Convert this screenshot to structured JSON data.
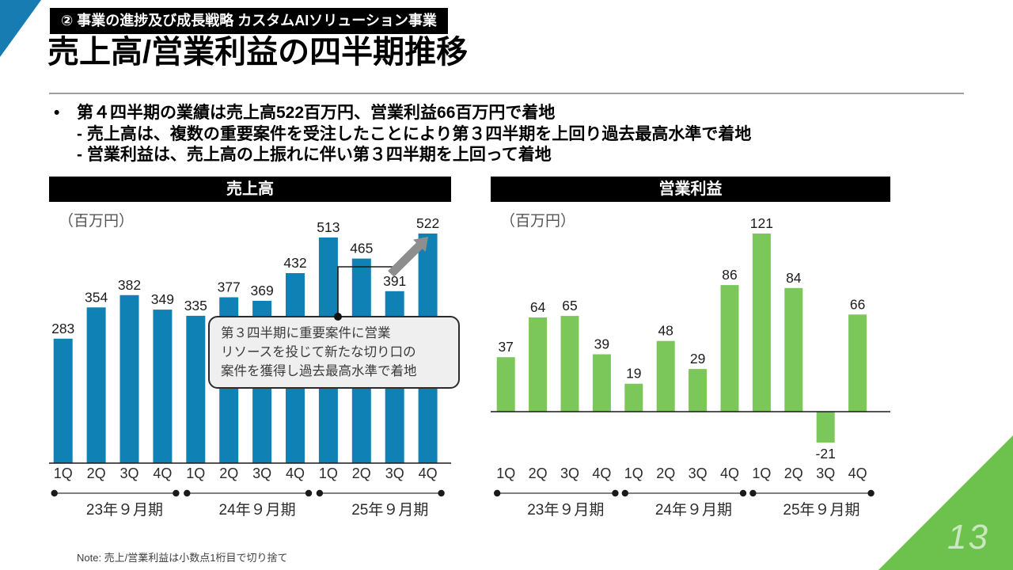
{
  "slide": {
    "badge": "② 事業の進捗及び成長戦略 カスタムAIソリューション事業",
    "title": "売上高/営業利益の四半期推移",
    "bullet_marker": "•",
    "bullets": {
      "line1": "第４四半期の業績は売上高522百万円、営業利益66百万円で着地",
      "line2": "- 売上高は、複数の重要案件を受注したことにより第３四半期を上回り過去最高水準で着地",
      "line3": "- 営業利益は、売上高の上振れに伴い第３四半期を上回って着地"
    },
    "note": "Note: 売上/営業利益は小数点1桁目で切り捨て",
    "page_number": "13"
  },
  "colors": {
    "sales_bar": "#1081B4",
    "profit_bar": "#7CC75A",
    "corner_blue": "#177CB1",
    "corner_green": "#6DC24E",
    "page_number_text": "#CBE7BD",
    "arrow_gray": "#8E8E8E",
    "callout_bg": "#EFEFEF"
  },
  "chart_data": [
    {
      "type": "bar",
      "title": "売上高",
      "unit_label": "（百万円）",
      "categories": [
        "1Q",
        "2Q",
        "3Q",
        "4Q",
        "1Q",
        "2Q",
        "3Q",
        "4Q",
        "1Q",
        "2Q",
        "3Q",
        "4Q"
      ],
      "values": [
        283,
        354,
        382,
        349,
        335,
        377,
        369,
        432,
        513,
        465,
        391,
        522
      ],
      "bar_color": "#1081B4",
      "ylabel": "百万円",
      "grid": false,
      "year_groups": [
        {
          "label": "23年９月期",
          "from": 0,
          "to": 3
        },
        {
          "label": "24年９月期",
          "from": 4,
          "to": 7
        },
        {
          "label": "25年９月期",
          "from": 8,
          "to": 11
        }
      ],
      "annotation": {
        "lines": [
          "第３四半期に重要案件に営業",
          "リソースを投じて新たな切り口の",
          "案件を獲得し過去最高水準で着地"
        ]
      }
    },
    {
      "type": "bar",
      "title": "営業利益",
      "unit_label": "（百万円）",
      "categories": [
        "1Q",
        "2Q",
        "3Q",
        "4Q",
        "1Q",
        "2Q",
        "3Q",
        "4Q",
        "1Q",
        "2Q",
        "3Q",
        "4Q"
      ],
      "values": [
        37,
        64,
        65,
        39,
        19,
        48,
        29,
        86,
        121,
        84,
        -21,
        66
      ],
      "bar_color": "#7CC75A",
      "ylabel": "百万円",
      "grid": false,
      "year_groups": [
        {
          "label": "23年９月期",
          "from": 0,
          "to": 3
        },
        {
          "label": "24年９月期",
          "from": 4,
          "to": 7
        },
        {
          "label": "25年９月期",
          "from": 8,
          "to": 11
        }
      ]
    }
  ]
}
